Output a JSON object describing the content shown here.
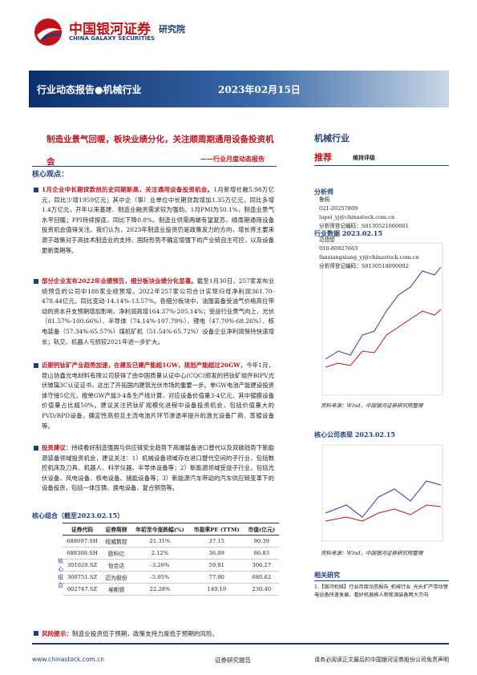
{
  "header": {
    "brand_cn": "中国银河证券",
    "brand_en": "CHINA GALAXY SECURITIES",
    "dept": "研究院"
  },
  "banner": {
    "report_type": "行业动态报告●机械行业",
    "date": "2023年02月15日"
  },
  "title": "制造业景气回暖，板块业绩分化，关注顺周期通用设备投资机会",
  "subtitle": "——行业月度动态报告",
  "core": {
    "heading": "核心观点：",
    "bullets": [
      {
        "lead": "1月企业中长期贷款创历史同期新高，关注通用设备投资机会。",
        "body": "1月新增社融5.98万亿元，同比少增1959亿元；其中企（事）业单位中长期贷款增加1.35万亿元，同比多增1.4万亿元，开年以来基建、制造业融资需求较为强劲。1月PMI为50.1%，制造业景气水平回暖；PPI持续探底，同比下降0.8%。制造业供需两端有望复苏，顺周期通用设备投资机会值得关注。我们认为，2023年制造业投资仍是政策发力的方向，增长将主要来源于政策对于高技术制造业的支持、国际形势不确定增强下的产业链自主可控，以及设备更新周期等。"
      },
      {
        "lead": "部分企业发布2022年业绩预告，细分板块业绩分化显著。",
        "body": "截至1月30日，257家发布业绩预告的公司中188家业绩预增。2022年257家公司合计实现归母净利润361.70-478.44亿元，同比变动-14.14%-13.57%。各细分板块中，油服装备受油气价格高位带动的资本开支预期增加影响，净利润高增164.37%-205.14%；受益行业景气向上，光伏（81.57%-100.66%）、半导体（74.14%-107.79%）、锂电（47.70%-68.26%）、核电装备（57.34%-65.57%）煤机矿机（51.54%-65.72%）设备企业净利润保持快速增长；轨交、机器人亏损较2021年进一步扩大。"
      },
      {
        "lead": "近期钙钛矿产业趋势加速，在建及已建产能超1GW，规划产能超过26GW，",
        "body": "今年1月，昆山协鑫光电材料有限公司获得了由中国质量认证中心(CQC)颁发的钙钛矿组件BIPV光伏玻璃3C认证证书，这出了开拓国内建筑光伏市场的重要一步。单GW电池产能建设投资体守接5亿元，按单GW产能3-4条生产线计算，对应设备价值量3-4亿元，其中镀膜设备价值量占比超50%。建议关注钙钛矿规模化进程中设备投资机会，包括价值量大的PVD/RPD设备，确定性高但且主流电池片环节渗透率提升的激光设备厂商、蒸镀设备等。"
      },
      {
        "lead": "投资建议：",
        "body": "持续看好制造强国与供应链安全趋势下高端装备进口替代以及双碳趋势下新能源装备领域投资机会，建议关注：1）机械设备领域存在进口替代空间的子行业，包括数控机床及刀具、机器人、科学仪器、半导体设备等；2）新能源领域受益子行业，包括光伏设备、风电设备、核电设备、储能设备等；3）新能源汽车带动的汽车供应链变革下的设备投资，包括一体压铸、换电设备、复合铜箔等。"
      }
    ]
  },
  "table": {
    "title": "核心组合（截至2023.02.15）",
    "side_label": "核心组合",
    "headers": [
      "证券代码",
      "证券简称",
      "年初至今涨跌幅(%)",
      "市盈率PE (TTM)",
      "市值(亿元)"
    ],
    "rows": [
      [
        "688697.SH",
        "纽威数控",
        "21.31%",
        "37.15",
        "90.39"
      ],
      [
        "688308.SH",
        "欧科亿",
        "2.12%",
        "36.09",
        "86.83"
      ],
      [
        "301029.SZ",
        "怡合达",
        "-3.26%",
        "59.91",
        "306.27"
      ],
      [
        "300751.SZ",
        "迈为股份",
        "-5.05%",
        "77.90",
        "680.62"
      ],
      [
        "002747.SZ",
        "埃斯顿",
        "22.28%",
        "149.19",
        "230.40"
      ]
    ]
  },
  "risk": {
    "label": "风险提示：",
    "text": "制造业投资低于预期，政策支持力度低于预期的风险。"
  },
  "sidebar": {
    "industry": "机械行业",
    "rating": "推荐",
    "rating_note": "维持评级",
    "analyst_heading": "分析师",
    "analysts": [
      {
        "name": "鲁佩",
        "phone": "021-20257809",
        "email": "lupei_yj@chinastock.com.cn",
        "code": "分析师登记编码：S0130521060001"
      },
      {
        "name": "范想想",
        "phone": "010-80927663",
        "email": "fanxiangxiang_yj@chinastock.com.cn",
        "code": "分析师登记编码：S0130518090002"
      }
    ],
    "chart1_title": "行业数据 2023.02.15",
    "chart1_source": "资料来源：Wind，中国银河证券研究院整理",
    "chart2_title": "核心公司表现 2023.02.15",
    "chart2_source": "资料来源：Wind，中国银河证券研究院整理",
    "related_heading": "相关研究",
    "related": [
      "1.【银河机械】行业月度动态报告_机械行业_光头扩产带动锂电设备快速发展，看好机器换人新能源装备两大方向"
    ]
  },
  "footer": {
    "url": "www.chinastock.com.cn",
    "center": "证券研究报告",
    "right": "请务必阅读正文最后的中国银河证券股份公司免责声明"
  }
}
